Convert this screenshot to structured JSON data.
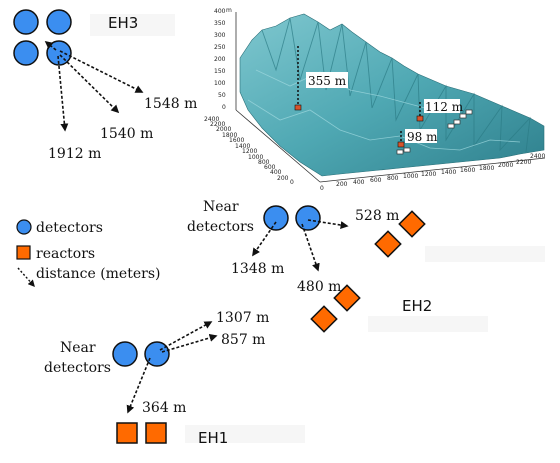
{
  "halls": {
    "eh3": {
      "label": "EH3",
      "distances": [
        "1548 m",
        "1540 m",
        "1912 m"
      ]
    },
    "eh2": {
      "label": "EH2",
      "detector_label_line1": "Near",
      "detector_label_line2": "detectors",
      "distances": [
        "528 m",
        "1348 m",
        "480 m"
      ]
    },
    "eh1": {
      "label": "EH1",
      "detector_label_line1": "Near",
      "detector_label_line2": "detectors",
      "distances": [
        "1307 m",
        "857 m",
        "364 m"
      ]
    }
  },
  "legend": {
    "detectors": "detectors",
    "reactors": "reactors",
    "distance": "distance (meters)"
  },
  "terrain": {
    "z_axis_unit": "m",
    "annotations": [
      "355 m",
      "112 m",
      "98 m"
    ],
    "z_ticks": [
      "400",
      "350",
      "300",
      "250",
      "200",
      "150",
      "100",
      "50",
      "0"
    ],
    "x_ticks": [
      "0",
      "200",
      "400",
      "600",
      "800",
      "1000",
      "1200",
      "1400",
      "1600",
      "1800",
      "2000",
      "2200",
      "2400"
    ],
    "y_ticks": [
      "2400",
      "2200",
      "2000",
      "1800",
      "1600",
      "1400",
      "1200",
      "1000",
      "800",
      "600",
      "400",
      "200",
      "0"
    ]
  },
  "colors": {
    "detector_fill": "#3b8ef0",
    "reactor_fill": "#ff6a00",
    "terrain_fill": "#4fa8b3"
  }
}
